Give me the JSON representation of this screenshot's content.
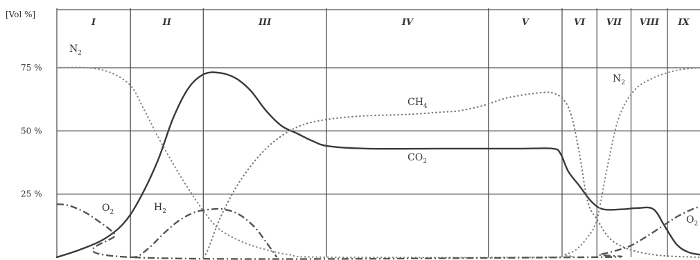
{
  "chart_data": {
    "type": "line",
    "ylabel": "[Vol %]",
    "ylim": [
      0,
      100
    ],
    "y_ticks": [
      "75 %",
      "50 %",
      "25 %"
    ],
    "y_tick_values": [
      75,
      50,
      25
    ],
    "phases": [
      "I",
      "II",
      "III",
      "IV",
      "V",
      "VI",
      "VII",
      "VIII",
      "IX"
    ],
    "phase_boundaries": [
      0,
      9.5,
      18.9,
      34.8,
      55.7,
      65.2,
      69.7,
      74.1,
      78.8,
      83.0
    ],
    "x_max": 83,
    "grid": true,
    "series": [
      {
        "name": "CO2",
        "label": "CO",
        "sub": "2",
        "color": "#3a3a3a",
        "style": "solid",
        "points": [
          [
            0,
            0
          ],
          [
            3,
            3
          ],
          [
            6,
            7
          ],
          [
            8.5,
            13
          ],
          [
            10.5,
            22
          ],
          [
            13,
            38
          ],
          [
            15,
            55
          ],
          [
            17,
            67
          ],
          [
            19,
            72.5
          ],
          [
            21,
            73
          ],
          [
            23,
            71
          ],
          [
            25,
            66
          ],
          [
            27,
            58
          ],
          [
            29,
            52
          ],
          [
            31,
            49
          ],
          [
            33,
            46
          ],
          [
            35,
            44
          ],
          [
            40,
            43
          ],
          [
            50,
            43
          ],
          [
            60,
            43
          ],
          [
            64,
            43
          ],
          [
            65,
            41
          ],
          [
            66,
            34
          ],
          [
            67.5,
            28
          ],
          [
            69,
            22
          ],
          [
            70.5,
            19
          ],
          [
            73,
            19
          ],
          [
            75,
            19.5
          ],
          [
            77,
            19
          ],
          [
            78.5,
            12
          ],
          [
            80,
            5
          ],
          [
            81.5,
            2
          ],
          [
            83,
            1
          ]
        ]
      },
      {
        "name": "CH4",
        "label": "CH",
        "sub": "4",
        "color": "#777777",
        "style": "dotted",
        "points": [
          [
            18.9,
            0
          ],
          [
            19.5,
            3
          ],
          [
            21,
            15
          ],
          [
            23,
            27
          ],
          [
            25,
            36
          ],
          [
            27,
            43
          ],
          [
            29,
            48
          ],
          [
            31,
            51.5
          ],
          [
            33,
            53.5
          ],
          [
            36,
            55
          ],
          [
            40,
            56
          ],
          [
            45,
            56.5
          ],
          [
            50,
            57.5
          ],
          [
            52,
            58
          ],
          [
            55,
            60
          ],
          [
            58,
            63
          ],
          [
            62,
            65
          ],
          [
            64,
            65
          ],
          [
            65.5,
            62
          ],
          [
            66.5,
            55
          ],
          [
            67.5,
            40
          ],
          [
            68.5,
            22
          ],
          [
            69.7,
            15
          ],
          [
            71.5,
            7
          ],
          [
            74,
            3
          ],
          [
            77,
            1
          ],
          [
            80,
            0.3
          ],
          [
            83,
            0
          ]
        ]
      },
      {
        "name": "N2",
        "label": "N",
        "sub": "2",
        "color": "#888888",
        "style": "dotted",
        "points": [
          [
            0,
            75
          ],
          [
            4,
            75
          ],
          [
            7,
            73
          ],
          [
            9.5,
            68
          ],
          [
            11,
            60
          ],
          [
            13,
            48
          ],
          [
            15,
            37
          ],
          [
            17,
            27
          ],
          [
            19,
            18
          ],
          [
            21,
            11
          ],
          [
            24,
            6
          ],
          [
            27,
            3
          ],
          [
            30,
            1
          ],
          [
            34.8,
            0
          ],
          [
            64,
            0
          ],
          [
            65.5,
            1
          ],
          [
            67,
            3
          ],
          [
            68.5,
            8
          ],
          [
            69.7,
            15
          ],
          [
            71,
            35
          ],
          [
            72.5,
            55
          ],
          [
            74.5,
            66
          ],
          [
            77,
            71
          ],
          [
            80,
            74
          ],
          [
            83,
            75
          ]
        ]
      },
      {
        "name": "H2",
        "label": "H",
        "sub": "2",
        "color": "#555555",
        "style": "dashdot",
        "points": [
          [
            9.5,
            0
          ],
          [
            10.5,
            0.5
          ],
          [
            12,
            4
          ],
          [
            14,
            10
          ],
          [
            16,
            15
          ],
          [
            18,
            18
          ],
          [
            20,
            19
          ],
          [
            21.5,
            19
          ],
          [
            23.5,
            17
          ],
          [
            25.5,
            12
          ],
          [
            27,
            6
          ],
          [
            28.4,
            0
          ]
        ]
      },
      {
        "name": "O2",
        "label": "O",
        "sub": "2",
        "color": "#555555",
        "style": "dashdot",
        "points": [
          [
            0,
            21
          ],
          [
            1.5,
            20.5
          ],
          [
            3.5,
            18
          ],
          [
            5.5,
            14
          ],
          [
            7.5,
            9
          ],
          [
            9.5,
            0
          ],
          [
            68,
            0
          ],
          [
            70,
            1
          ],
          [
            72,
            2.5
          ],
          [
            74,
            4.5
          ],
          [
            76,
            8
          ],
          [
            78,
            12
          ],
          [
            80,
            16
          ],
          [
            82,
            19
          ],
          [
            83,
            20
          ]
        ]
      }
    ]
  }
}
